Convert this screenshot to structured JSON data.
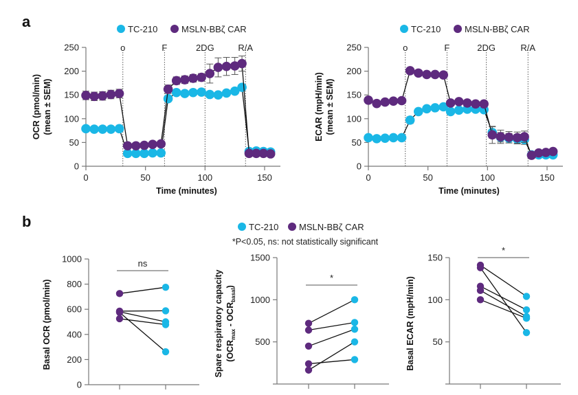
{
  "colors": {
    "tc210": "#1ab7e6",
    "msln": "#5e2a7e",
    "axis": "#777777",
    "line": "#111111",
    "err": "#555555"
  },
  "legend": {
    "series1": "TC-210",
    "series2": "MSLN-BBζ CAR"
  },
  "panel_a": {
    "label": "a"
  },
  "panel_b": {
    "label": "b",
    "note": "*P<0.05, ns: not statistically significant"
  },
  "chart_data": [
    {
      "id": "ocr",
      "type": "line",
      "title": "",
      "xlabel": "Time (minutes)",
      "ylabel_line1": "OCR (pmol/min)",
      "ylabel_line2": "(mean ± SEM)",
      "xlim": [
        0,
        160
      ],
      "ylim": [
        0,
        250
      ],
      "xticks": [
        0,
        50,
        100,
        150
      ],
      "yticks": [
        0,
        50,
        100,
        150,
        200,
        250
      ],
      "injections": [
        {
          "label": "o",
          "x": 31
        },
        {
          "label": "F",
          "x": 66
        },
        {
          "label": "2DG",
          "x": 100
        },
        {
          "label": "R/A",
          "x": 134
        }
      ],
      "x": [
        0,
        7,
        14,
        21,
        28,
        35,
        42,
        49,
        56,
        63,
        69,
        76,
        83,
        90,
        97,
        104,
        111,
        118,
        125,
        131,
        137,
        143,
        149,
        155
      ],
      "series": [
        {
          "name": "TC-210",
          "values": [
            79,
            78,
            78,
            78,
            79,
            27,
            27,
            27,
            28,
            28,
            142,
            155,
            153,
            155,
            156,
            151,
            150,
            154,
            158,
            166,
            31,
            32,
            31,
            30
          ],
          "sem": [
            3,
            3,
            3,
            3,
            3,
            3,
            3,
            3,
            3,
            3,
            6,
            5,
            5,
            5,
            5,
            5,
            5,
            5,
            5,
            6,
            4,
            4,
            4,
            4
          ]
        },
        {
          "name": "MSLN-BBζ CAR",
          "values": [
            149,
            147,
            148,
            151,
            153,
            43,
            43,
            44,
            46,
            47,
            162,
            180,
            182,
            185,
            187,
            195,
            208,
            210,
            211,
            216,
            27,
            27,
            27,
            26
          ],
          "sem": [
            9,
            9,
            9,
            9,
            9,
            4,
            4,
            4,
            4,
            4,
            9,
            8,
            8,
            8,
            8,
            20,
            20,
            19,
            18,
            16,
            4,
            4,
            4,
            4
          ]
        }
      ]
    },
    {
      "id": "ecar",
      "type": "line",
      "title": "",
      "xlabel": "Time (minutes)",
      "ylabel_line1": "ECAR (mpH/min)",
      "ylabel_line2": "(mean ± SEM)",
      "xlim": [
        0,
        160
      ],
      "ylim": [
        0,
        250
      ],
      "xticks": [
        0,
        50,
        100,
        150
      ],
      "yticks": [
        0,
        50,
        100,
        150,
        200,
        250
      ],
      "injections": [
        {
          "label": "o",
          "x": 31
        },
        {
          "label": "F",
          "x": 66
        },
        {
          "label": "2DG",
          "x": 99
        },
        {
          "label": "R/A",
          "x": 134
        }
      ],
      "x": [
        0,
        7,
        14,
        21,
        28,
        35,
        42,
        49,
        56,
        63,
        69,
        76,
        83,
        90,
        97,
        104,
        111,
        118,
        125,
        131,
        137,
        143,
        149,
        155
      ],
      "series": [
        {
          "name": "TC-210",
          "values": [
            60,
            58,
            59,
            60,
            60,
            97,
            115,
            121,
            123,
            125,
            115,
            118,
            120,
            120,
            119,
            71,
            61,
            59,
            57,
            56,
            24,
            24,
            24,
            24
          ],
          "sem": [
            2,
            2,
            2,
            2,
            2,
            7,
            4,
            4,
            4,
            4,
            3,
            3,
            3,
            3,
            3,
            12,
            10,
            10,
            10,
            10,
            3,
            3,
            3,
            3
          ]
        },
        {
          "name": "MSLN-BBζ CAR",
          "values": [
            139,
            132,
            135,
            137,
            138,
            201,
            196,
            193,
            193,
            192,
            133,
            136,
            133,
            131,
            131,
            66,
            62,
            61,
            60,
            62,
            23,
            28,
            29,
            31
          ],
          "sem": [
            2,
            2,
            2,
            2,
            2,
            2,
            2,
            2,
            2,
            2,
            2,
            2,
            2,
            2,
            2,
            18,
            14,
            12,
            12,
            12,
            3,
            3,
            3,
            3
          ]
        }
      ]
    },
    {
      "id": "basal_ocr",
      "type": "scatter",
      "title": "",
      "ylabel": "Basal OCR (pmol/min)",
      "ylim": [
        0,
        1000
      ],
      "yticks": [
        0,
        200,
        400,
        600,
        800,
        1000
      ],
      "significance": "ns",
      "pairs": [
        {
          "MSLN-BBζ CAR": 725,
          "TC-210": 775
        },
        {
          "MSLN-BBζ CAR": 585,
          "TC-210": 588
        },
        {
          "MSLN-BBζ CAR": 580,
          "TC-210": 500
        },
        {
          "MSLN-BBζ CAR": 525,
          "TC-210": 478
        },
        {
          "MSLN-BBζ CAR": 575,
          "TC-210": 262
        }
      ]
    },
    {
      "id": "spare_capacity",
      "type": "scatter",
      "title": "",
      "ylabel_line1": "Spare respiratory capacity",
      "ylabel_line2_parts": [
        "(OCR",
        "max",
        " - OCR",
        "basal",
        ")"
      ],
      "ylim": [
        0,
        1500
      ],
      "yticks": [
        500,
        1000,
        1500
      ],
      "significance": "*",
      "pairs": [
        {
          "MSLN-BBζ CAR": 720,
          "TC-210": 1000
        },
        {
          "MSLN-BBζ CAR": 640,
          "TC-210": 730
        },
        {
          "MSLN-BBζ CAR": 450,
          "TC-210": 650
        },
        {
          "MSLN-BBζ CAR": 240,
          "TC-210": 290
        },
        {
          "MSLN-BBζ CAR": 165,
          "TC-210": 500
        }
      ]
    },
    {
      "id": "basal_ecar",
      "type": "scatter",
      "title": "",
      "ylabel": "Basal ECAR (mpH/min)",
      "ylim": [
        0,
        150
      ],
      "yticks": [
        50,
        100,
        150
      ],
      "significance": "*",
      "pairs": [
        {
          "MSLN-BBζ CAR": 141,
          "TC-210": 104
        },
        {
          "MSLN-BBζ CAR": 138,
          "TC-210": 61
        },
        {
          "MSLN-BBζ CAR": 116,
          "TC-210": 88
        },
        {
          "MSLN-BBζ CAR": 111,
          "TC-210": 80
        },
        {
          "MSLN-BBζ CAR": 100,
          "TC-210": 78
        }
      ]
    }
  ]
}
